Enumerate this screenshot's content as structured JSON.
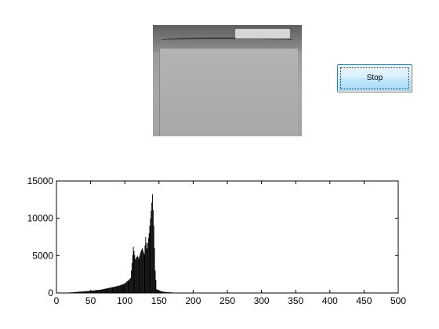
{
  "preview_image": {
    "icon": "camera-preview-image"
  },
  "controls": {
    "stop_label": "Stop"
  },
  "chart_data": {
    "type": "bar",
    "title": "",
    "xlabel": "",
    "ylabel": "",
    "xlim": [
      0,
      500
    ],
    "ylim": [
      0,
      15000
    ],
    "xticks": [
      0,
      50,
      100,
      150,
      200,
      250,
      300,
      350,
      400,
      450,
      500
    ],
    "yticks": [
      0,
      5000,
      10000,
      15000
    ],
    "grid": false,
    "x": [
      5,
      10,
      15,
      20,
      25,
      30,
      35,
      40,
      45,
      50,
      55,
      60,
      65,
      70,
      75,
      80,
      85,
      90,
      95,
      100,
      102,
      105,
      108,
      110,
      112,
      115,
      118,
      120,
      122,
      125,
      128,
      130,
      132,
      135,
      138,
      140,
      142,
      144,
      146,
      150,
      155,
      160,
      170,
      180,
      200,
      220,
      240,
      250
    ],
    "values": [
      20,
      30,
      50,
      70,
      100,
      150,
      180,
      220,
      260,
      300,
      350,
      400,
      450,
      550,
      650,
      750,
      850,
      950,
      1100,
      1300,
      1500,
      1700,
      2000,
      4000,
      6200,
      4500,
      5000,
      4600,
      5300,
      6000,
      5200,
      7500,
      6000,
      8000,
      11000,
      13200,
      9000,
      3000,
      500,
      300,
      180,
      120,
      60,
      40,
      20,
      10,
      5,
      2
    ]
  }
}
